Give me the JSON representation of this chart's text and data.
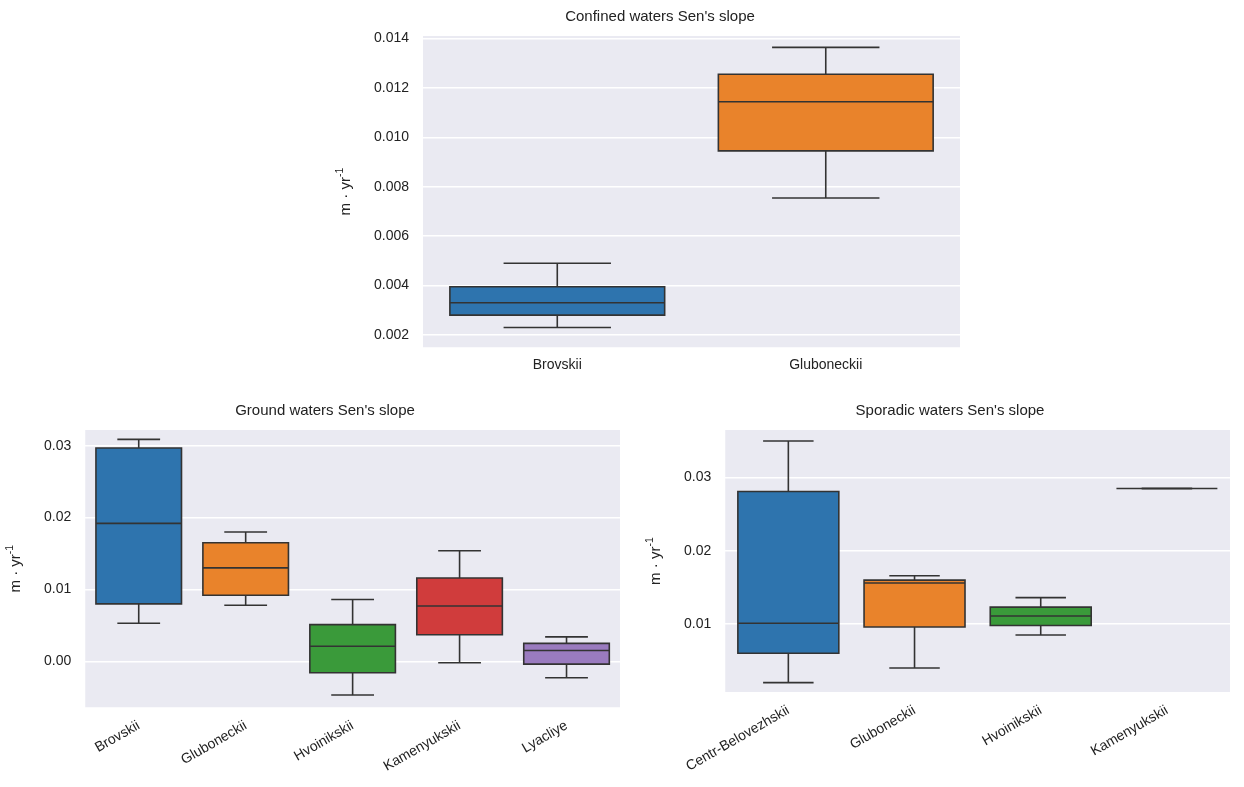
{
  "chart_data": [
    {
      "type": "box",
      "title": "Confined waters Sen's slope",
      "ylabel": "m · yr$^{-1}$",
      "categories": [
        "Brovskii",
        "Gluboneckii"
      ],
      "colors": [
        "#2e74ae",
        "#e9832b"
      ],
      "boxes": [
        {
          "low": 0.0023,
          "q1": 0.0028,
          "median": 0.0033,
          "q3": 0.00395,
          "high": 0.0049
        },
        {
          "low": 0.00754,
          "q1": 0.00945,
          "median": 0.01144,
          "q3": 0.01255,
          "high": 0.01364
        }
      ],
      "ylim": [
        0.0015,
        0.0141
      ],
      "yticks": [
        0.002,
        0.004,
        0.006,
        0.008,
        {
          "value": 0.01,
          "label": "0.010"
        },
        0.012,
        0.014
      ],
      "grid": "y"
    },
    {
      "type": "box",
      "title": "Ground waters Sen's slope",
      "ylabel": "m · yr$^{-1}$",
      "categories": [
        "Brovskii",
        "Gluboneckii",
        "Hvoinikskii",
        "Kamenyukskii",
        "Lyacliye"
      ],
      "colors": [
        "#2e74ae",
        "#e9832b",
        "#3a9a3a",
        "#d03c3c",
        "#9a7bbf"
      ],
      "boxes": [
        {
          "low": 0.0053,
          "q1": 0.008,
          "median": 0.0192,
          "q3": 0.0297,
          "high": 0.0309
        },
        {
          "low": 0.0078,
          "q1": 0.0092,
          "median": 0.013,
          "q3": 0.0165,
          "high": 0.018
        },
        {
          "low": -0.0047,
          "q1": -0.0016,
          "median": 0.0021,
          "q3": 0.0051,
          "high": 0.0086
        },
        {
          "low": -0.0002,
          "q1": 0.0037,
          "median": 0.0077,
          "q3": 0.0116,
          "high": 0.0154
        },
        {
          "low": -0.0023,
          "q1": -0.0004,
          "median": 0.0015,
          "q3": 0.0025,
          "high": 0.0034
        }
      ],
      "ylim": [
        -0.0064,
        0.0322
      ],
      "yticks": [
        {
          "value": 0,
          "label": "0.00"
        },
        {
          "value": 0.01,
          "label": "0.01"
        },
        {
          "value": 0.02,
          "label": "0.02"
        },
        {
          "value": 0.03,
          "label": "0.03"
        }
      ],
      "grid": "y"
    },
    {
      "type": "box",
      "title": "Sporadic waters Sen's slope",
      "ylabel": "m · yr$^{-1}$",
      "categories": [
        "Centr-Belovezhskii",
        "Gluboneckii",
        "Hvoinikskii",
        "Kamenyukskii"
      ],
      "colors": [
        "#2e74ae",
        "#e9832b",
        "#3a9a3a",
        "#333333"
      ],
      "boxes": [
        {
          "low": 0.002,
          "q1": 0.006,
          "median": 0.0101,
          "q3": 0.0281,
          "high": 0.035
        },
        {
          "low": 0.004,
          "q1": 0.0096,
          "median": 0.0156,
          "q3": 0.016,
          "high": 0.0166
        },
        {
          "low": 0.0085,
          "q1": 0.0098,
          "median": 0.0111,
          "q3": 0.0123,
          "high": 0.0136
        },
        {
          "low": 0.0285,
          "q1": 0.0285,
          "median": 0.0285,
          "q3": 0.0285,
          "high": 0.0285
        }
      ],
      "ylim": [
        0.0007,
        0.0365
      ],
      "yticks": [
        0.01,
        0.02,
        0.03
      ],
      "grid": "y"
    }
  ]
}
